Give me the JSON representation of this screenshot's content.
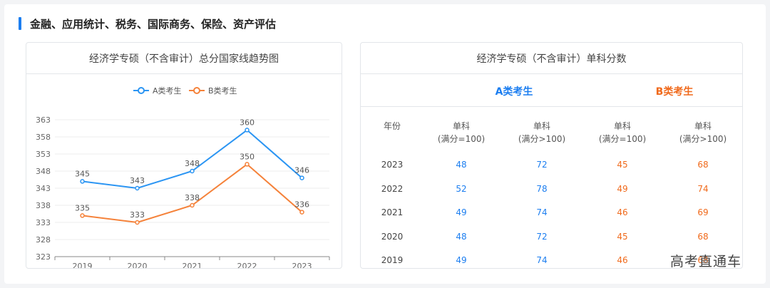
{
  "section": {
    "title": "金融、应用统计、税务、国际商务、保险、资产评估"
  },
  "left_card": {
    "title": "经济学专硕（不含审计）总分国家线趋势图"
  },
  "colors": {
    "series_a": "#2b95f3",
    "series_b": "#f5823a",
    "accent": "#1c7ef0"
  },
  "chart_data": {
    "type": "line",
    "categories": [
      "2019",
      "2020",
      "2021",
      "2022",
      "2023"
    ],
    "series": [
      {
        "name": "A类考生",
        "values": [
          345,
          343,
          348,
          360,
          346
        ]
      },
      {
        "name": "B类考生",
        "values": [
          335,
          333,
          338,
          350,
          336
        ]
      }
    ],
    "yticks": [
      363,
      358,
      353,
      348,
      343,
      338,
      333,
      328,
      323
    ],
    "ylim": [
      323,
      363
    ],
    "grid": true,
    "legend": "top-center",
    "title": "",
    "xlabel": "",
    "ylabel": ""
  },
  "right_card": {
    "title": "经济学专硕（不含审计）单科分数",
    "group_a": "A类考生",
    "group_b": "B类考生",
    "headers": {
      "year": "年份",
      "a1": [
        "单科",
        "(满分=100)"
      ],
      "a2": [
        "单科",
        "(满分>100)"
      ],
      "b1": [
        "单科",
        "(满分=100)"
      ],
      "b2": [
        "单科",
        "(满分>100)"
      ]
    },
    "rows": [
      {
        "year": "2023",
        "a1": "48",
        "a2": "72",
        "b1": "45",
        "b2": "68"
      },
      {
        "year": "2022",
        "a1": "52",
        "a2": "78",
        "b1": "49",
        "b2": "74"
      },
      {
        "year": "2021",
        "a1": "49",
        "a2": "74",
        "b1": "46",
        "b2": "69"
      },
      {
        "year": "2020",
        "a1": "48",
        "a2": "72",
        "b1": "45",
        "b2": "68"
      },
      {
        "year": "2019",
        "a1": "49",
        "a2": "74",
        "b1": "46",
        "b2": "68"
      }
    ]
  },
  "watermark": "高考直通车"
}
